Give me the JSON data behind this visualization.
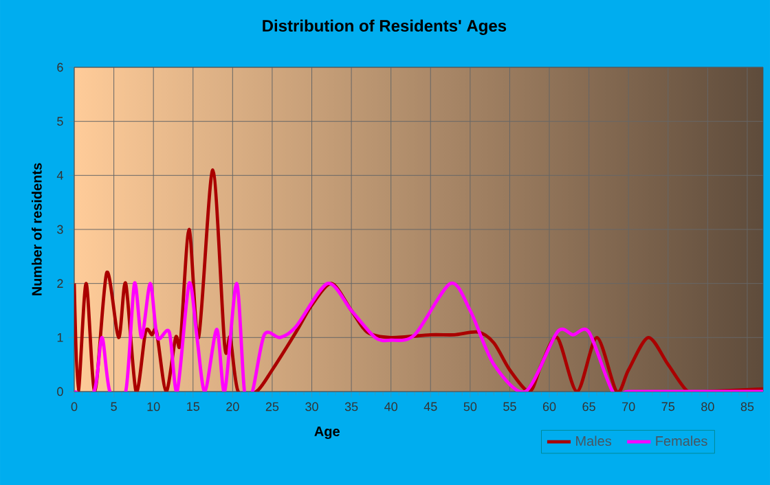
{
  "chart_data": {
    "type": "line",
    "title": "Distribution of Residents' Ages",
    "xlabel": "Age",
    "ylabel": "Number of residents",
    "xlim": [
      0,
      87
    ],
    "ylim": [
      0,
      6
    ],
    "xticks": [
      0,
      5,
      10,
      15,
      20,
      25,
      30,
      35,
      40,
      45,
      50,
      55,
      60,
      65,
      70,
      75,
      80,
      85
    ],
    "yticks": [
      0,
      1,
      2,
      3,
      4,
      5,
      6
    ],
    "grid": true,
    "legend": "bottom right",
    "marker": "none",
    "line_style": "solid",
    "series": [
      {
        "name": "Males",
        "color": "#aa0000",
        "x": [
          0,
          0.5,
          1.5,
          2.6,
          4.1,
          5.6,
          6.5,
          7.8,
          9,
          9.8,
          10.4,
          11.6,
          12.8,
          13.4,
          14.5,
          15.7,
          17.5,
          19,
          19.7,
          20.7,
          23,
          25,
          28,
          30,
          32.5,
          35,
          37,
          40,
          45,
          48,
          51,
          53,
          55,
          57.5,
          59,
          61,
          63.5,
          66,
          68.5,
          70,
          72.5,
          75,
          77.5,
          80,
          87
        ],
        "values": [
          2,
          0,
          2,
          0,
          2.2,
          1,
          2,
          0,
          1.1,
          1.05,
          1.1,
          0,
          1,
          0.9,
          3,
          1,
          4.1,
          0.85,
          1,
          0,
          0,
          0.4,
          1.1,
          1.6,
          2,
          1.5,
          1.1,
          1,
          1.05,
          1.05,
          1.1,
          0.9,
          0.4,
          0,
          0.5,
          1,
          0,
          1,
          0,
          0.4,
          1,
          0.5,
          0,
          0,
          0.05
        ]
      },
      {
        "name": "Females",
        "color": "#ff00ff",
        "x": [
          0,
          2.5,
          3.5,
          4.5,
          6.5,
          7.6,
          8.5,
          9.6,
          10.5,
          12,
          13,
          14.5,
          15.5,
          16.5,
          18,
          19,
          20.5,
          21.5,
          22.5,
          24,
          26,
          28,
          32,
          35,
          38,
          40,
          43,
          47.5,
          50,
          53,
          57,
          61,
          63,
          65,
          68,
          70,
          75,
          80,
          87
        ],
        "values": [
          0,
          0,
          1,
          0,
          0,
          2,
          1,
          2,
          1,
          1.1,
          0,
          2,
          1,
          0,
          1.15,
          0,
          2,
          0,
          0,
          1.05,
          1,
          1.2,
          2,
          1.5,
          1,
          0.95,
          1.05,
          2,
          1.5,
          0.5,
          0,
          1.1,
          1.05,
          1.1,
          0,
          0,
          0,
          0,
          0
        ]
      }
    ]
  }
}
